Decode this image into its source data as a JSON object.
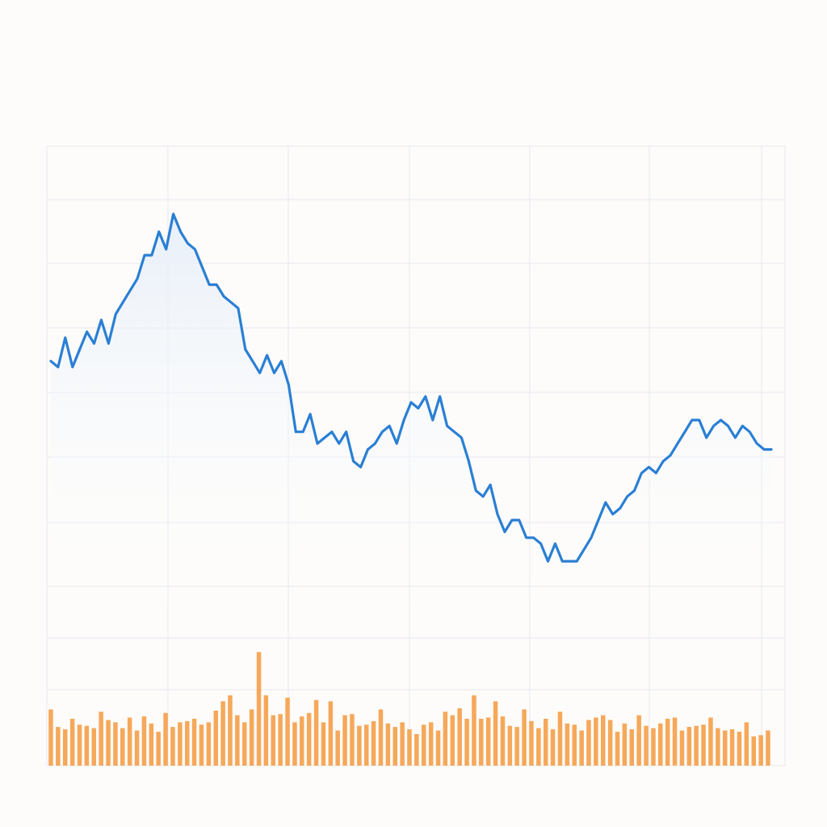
{
  "colors": {
    "background": "#fdfcfa",
    "grid": "#e6e9f2",
    "line": "#2a7fd4",
    "area_fill": "#e8f0fa",
    "bars": "#f6a85a"
  },
  "chart_data": [
    {
      "type": "line",
      "title": "",
      "xlabel": "",
      "ylabel": "",
      "grid": true,
      "legend": "none",
      "xlim": [
        0,
        100
      ],
      "ylim": [
        0,
        100
      ],
      "x": [
        0,
        1,
        2,
        3,
        4,
        5,
        6,
        7,
        8,
        9,
        10,
        11,
        12,
        13,
        14,
        15,
        16,
        17,
        18,
        19,
        20,
        21,
        22,
        23,
        24,
        25,
        26,
        27,
        28,
        29,
        30,
        31,
        32,
        33,
        34,
        35,
        36,
        37,
        38,
        39,
        40,
        41,
        42,
        43,
        44,
        45,
        46,
        47,
        48,
        49,
        50,
        51,
        52,
        53,
        54,
        55,
        56,
        57,
        58,
        59,
        60,
        61,
        62,
        63,
        64,
        65,
        66,
        67,
        68,
        69,
        70,
        71,
        72,
        73,
        74,
        75,
        76,
        77,
        78,
        79,
        80,
        81,
        82,
        83,
        84,
        85,
        86,
        87,
        88,
        89,
        90,
        91,
        92,
        93,
        94,
        95,
        96,
        97,
        98,
        99,
        100
      ],
      "values": [
        59,
        58,
        63,
        58,
        61,
        64,
        62,
        66,
        62,
        67,
        69,
        71,
        73,
        77,
        77,
        81,
        78,
        84,
        81,
        79,
        78,
        75,
        72,
        72,
        70,
        69,
        68,
        61,
        59,
        57,
        60,
        57,
        59,
        55,
        47,
        47,
        50,
        45,
        46,
        47,
        45,
        47,
        42,
        41,
        44,
        45,
        47,
        48,
        45,
        49,
        52,
        51,
        53,
        49,
        53,
        48,
        47,
        46,
        42,
        37,
        36,
        38,
        33,
        30,
        32,
        32,
        29,
        29,
        28,
        25,
        28,
        25,
        25,
        25,
        27,
        29,
        32,
        35,
        33,
        34,
        36,
        37,
        40,
        41,
        40,
        42,
        43,
        45,
        47,
        49,
        49,
        46,
        48,
        49,
        48,
        46,
        48,
        47,
        45,
        44,
        44
      ]
    },
    {
      "type": "bar",
      "title": "",
      "xlabel": "",
      "ylabel": "",
      "grid": true,
      "legend": "none",
      "ylim": [
        0,
        100
      ],
      "values": [
        48,
        33,
        31,
        40,
        35,
        34,
        32,
        46,
        39,
        37,
        32,
        41,
        30,
        42,
        36,
        29,
        45,
        33,
        37,
        38,
        40,
        35,
        37,
        47,
        55,
        60,
        43,
        37,
        48,
        97,
        60,
        43,
        44,
        58,
        37,
        42,
        45,
        56,
        37,
        55,
        30,
        43,
        44,
        34,
        35,
        38,
        48,
        36,
        33,
        37,
        31,
        27,
        35,
        37,
        30,
        46,
        43,
        49,
        40,
        60,
        40,
        41,
        55,
        42,
        34,
        33,
        48,
        38,
        32,
        40,
        31,
        46,
        36,
        35,
        30,
        39,
        41,
        43,
        39,
        29,
        36,
        31,
        43,
        34,
        32,
        36,
        40,
        41,
        30,
        33,
        34,
        35,
        41,
        32,
        30,
        31,
        29,
        37,
        25,
        26,
        30
      ]
    }
  ]
}
